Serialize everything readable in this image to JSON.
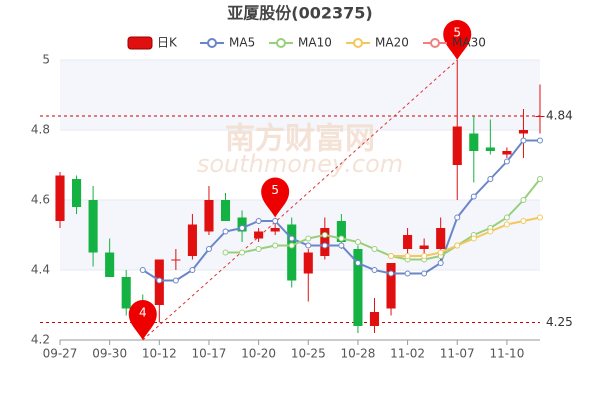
{
  "chart_data": {
    "type": "candlestick",
    "title": "亚厦股份(002375)",
    "candle_name": "日K",
    "up_color": "#e01010",
    "down_color": "#14b143",
    "categories": [
      "09-27",
      null,
      null,
      "09-30",
      null,
      null,
      "10-12",
      null,
      null,
      "10-17",
      null,
      null,
      "10-20",
      null,
      null,
      "10-25",
      null,
      null,
      "10-28",
      null,
      null,
      "11-02",
      null,
      null,
      "11-07",
      null,
      null,
      "11-10",
      null,
      null
    ],
    "open": [
      4.54,
      4.66,
      4.6,
      4.45,
      4.38,
      4.31,
      4.3,
      4.43,
      4.44,
      4.51,
      4.6,
      4.55,
      4.49,
      4.51,
      4.53,
      4.39,
      4.44,
      4.54,
      4.46,
      4.24,
      4.29,
      4.46,
      4.46,
      4.46,
      4.7,
      4.79,
      4.75,
      4.73,
      4.79,
      4.84
    ],
    "close": [
      4.67,
      4.58,
      4.45,
      4.38,
      4.29,
      4.29,
      4.43,
      4.43,
      4.53,
      4.6,
      4.54,
      4.51,
      4.51,
      4.52,
      4.37,
      4.45,
      4.52,
      4.48,
      4.24,
      4.28,
      4.42,
      4.5,
      4.47,
      4.52,
      4.81,
      4.74,
      4.74,
      4.74,
      4.8,
      4.84
    ],
    "high": [
      4.68,
      4.67,
      4.64,
      4.49,
      4.4,
      4.33,
      4.43,
      4.46,
      4.56,
      4.64,
      4.62,
      4.57,
      4.52,
      4.54,
      4.55,
      4.46,
      4.55,
      4.56,
      4.47,
      4.32,
      4.42,
      4.52,
      4.49,
      4.55,
      5,
      4.84,
      4.83,
      4.75,
      4.86,
      4.93
    ],
    "low": [
      4.52,
      4.56,
      4.41,
      4.38,
      4.27,
      4.25,
      4.25,
      4.4,
      4.43,
      4.5,
      4.54,
      4.48,
      4.48,
      4.5,
      4.35,
      4.31,
      4.43,
      4.46,
      4.22,
      4.22,
      4.27,
      4.44,
      4.43,
      4.42,
      4.6,
      4.65,
      4.73,
      4.72,
      4.72,
      4.79
    ],
    "series": [
      {
        "name": "MA5",
        "color": "#6a86c9",
        "values": [
          null,
          null,
          null,
          null,
          null,
          4.4,
          4.37,
          4.37,
          4.4,
          4.46,
          4.51,
          4.52,
          4.54,
          4.54,
          4.49,
          4.47,
          4.47,
          4.47,
          4.42,
          4.4,
          4.39,
          4.39,
          4.39,
          4.42,
          4.55,
          4.61,
          4.66,
          4.71,
          4.77,
          4.77
        ]
      },
      {
        "name": "MA10",
        "color": "#98d07a",
        "values": [
          null,
          null,
          null,
          null,
          null,
          null,
          null,
          null,
          null,
          null,
          4.45,
          4.45,
          4.46,
          4.47,
          4.47,
          4.49,
          4.5,
          4.49,
          4.48,
          4.46,
          4.44,
          4.43,
          4.43,
          4.44,
          4.47,
          4.5,
          4.52,
          4.55,
          4.6,
          4.66
        ]
      },
      {
        "name": "MA20",
        "color": "#f3c75a",
        "values": [
          null,
          null,
          null,
          null,
          null,
          null,
          null,
          null,
          null,
          null,
          null,
          null,
          null,
          null,
          null,
          null,
          null,
          null,
          null,
          null,
          4.44,
          4.44,
          4.44,
          4.45,
          4.47,
          4.49,
          4.51,
          4.53,
          4.54,
          4.55
        ]
      },
      {
        "name": "MA30",
        "color": "#f08080",
        "values": [
          null,
          null,
          null,
          null,
          null,
          null,
          null,
          null,
          null,
          null,
          null,
          null,
          null,
          null,
          null,
          null,
          null,
          null,
          null,
          null,
          null,
          null,
          null,
          null,
          null,
          null,
          null,
          null,
          null,
          null
        ]
      }
    ],
    "ylim": [
      4.2,
      5
    ],
    "yticks": [
      4.2,
      4.4,
      4.6,
      4.8,
      5
    ],
    "reference_lines": [
      4.84,
      4.25
    ],
    "annotations": [
      {
        "text": "4",
        "index": 5,
        "value": 4.2
      },
      {
        "text": "5",
        "index": 13,
        "value": 4.55
      },
      {
        "text": "5",
        "index": 24,
        "value": 5
      }
    ],
    "watermark": "南方财富网",
    "watermark_sub": "southmoney.com"
  }
}
